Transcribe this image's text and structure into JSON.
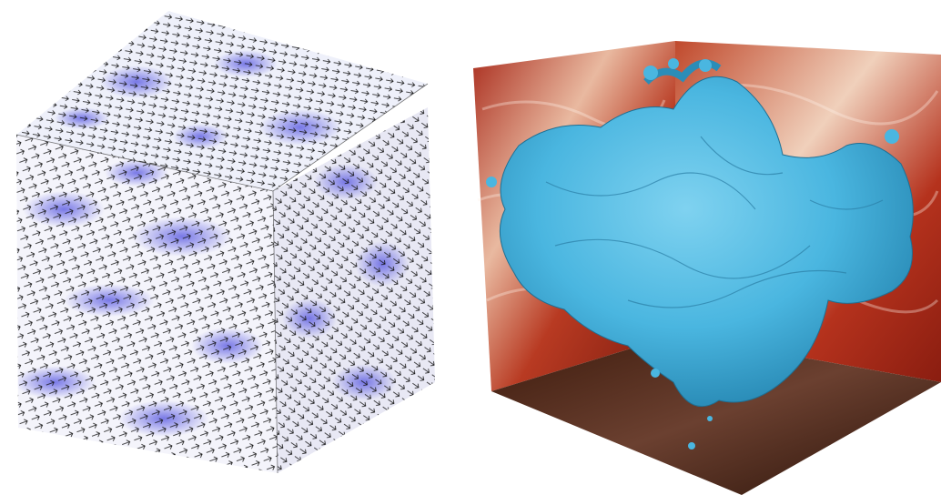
{
  "figure": {
    "panels": [
      {
        "id": "velocity-field-cube",
        "content": "cube-with-vector-arrows",
        "colors": {
          "arrows": "#111111",
          "magnitude_low": "#ffffff",
          "magnitude_high": "#4a4adf"
        }
      },
      {
        "id": "isosurface-box",
        "content": "isosurface-in-box-with-slices",
        "colors": {
          "isosurface": "#4db8e0",
          "wall_dark": "#8b1a10",
          "wall_light": "#f2d2c0",
          "floor_dark": "#2a1208"
        }
      }
    ]
  }
}
